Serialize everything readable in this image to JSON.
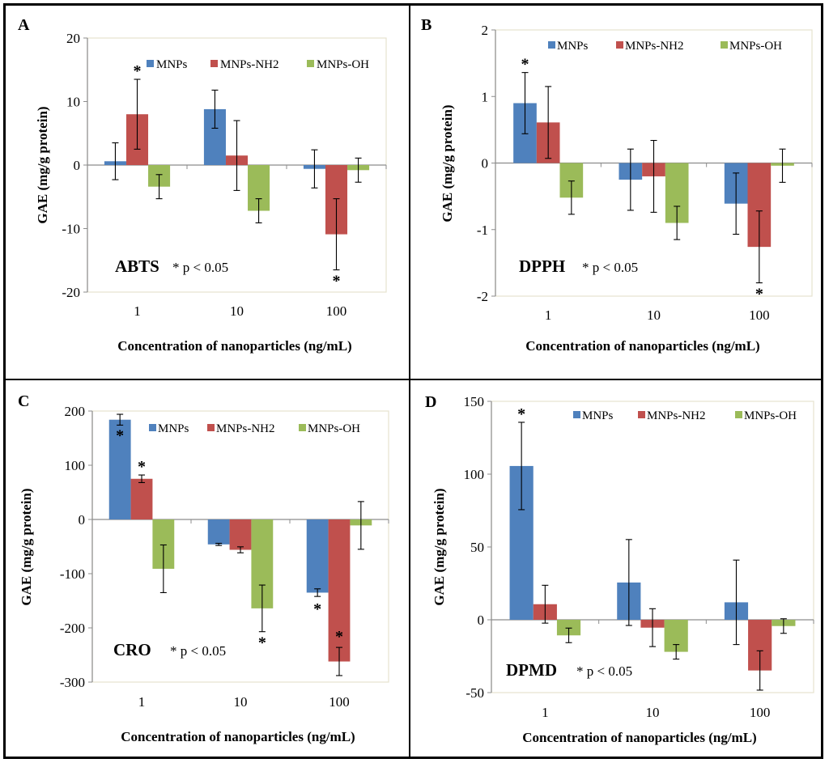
{
  "figure": {
    "legend": [
      "MNPs",
      "MNPs-NH2",
      "MNPs-OH"
    ],
    "colors": {
      "MNPs": "#4F81BD",
      "MNPs-NH2": "#C0504D",
      "MNPs-OH": "#9BBB59"
    }
  },
  "chart_data": [
    {
      "type": "bar",
      "panel": "A",
      "assay_label": "ABTS",
      "significance_note": "* p < 0.05",
      "xlabel": "Concentration of nanoparticles (ng/mL)",
      "ylabel": "GAE (mg/g protein)",
      "categories": [
        "1",
        "10",
        "100"
      ],
      "ylim": [
        -20,
        20
      ],
      "yticks": [
        -20,
        -10,
        0,
        10,
        20
      ],
      "ytick_labels": [
        "-20",
        "-10",
        "0",
        "10",
        "20"
      ],
      "legend_position": "top",
      "grid": false,
      "series": [
        {
          "name": "MNPs",
          "values": [
            0.6,
            8.8,
            -0.6
          ],
          "errors": [
            2.9,
            3.0,
            3.0
          ],
          "significant": [
            false,
            false,
            false
          ]
        },
        {
          "name": "MNPs-NH2",
          "values": [
            8.0,
            1.5,
            -10.9
          ],
          "errors": [
            5.5,
            5.5,
            5.6
          ],
          "significant": [
            true,
            false,
            true
          ]
        },
        {
          "name": "MNPs-OH",
          "values": [
            -3.4,
            -7.2,
            -0.8
          ],
          "errors": [
            1.9,
            1.9,
            1.9
          ],
          "significant": [
            false,
            false,
            false
          ]
        }
      ]
    },
    {
      "type": "bar",
      "panel": "B",
      "assay_label": "DPPH",
      "significance_note": "* p < 0.05",
      "xlabel": "Concentration of nanoparticles (ng/mL)",
      "ylabel": "GAE (mg/g protein)",
      "categories": [
        "1",
        "10",
        "100"
      ],
      "ylim": [
        -2,
        2
      ],
      "yticks": [
        -2,
        -1,
        0,
        1,
        2
      ],
      "ytick_labels": [
        "-2",
        "-1",
        "0",
        "1",
        "2"
      ],
      "legend_position": "top",
      "grid": false,
      "series": [
        {
          "name": "MNPs",
          "values": [
            0.9,
            -0.25,
            -0.61
          ],
          "errors": [
            0.46,
            0.46,
            0.46
          ],
          "significant": [
            true,
            false,
            false
          ]
        },
        {
          "name": "MNPs-NH2",
          "values": [
            0.61,
            -0.2,
            -1.26
          ],
          "errors": [
            0.54,
            0.54,
            0.54
          ],
          "significant": [
            false,
            false,
            true
          ]
        },
        {
          "name": "MNPs-OH",
          "values": [
            -0.52,
            -0.9,
            -0.04
          ],
          "errors": [
            0.25,
            0.25,
            0.25
          ],
          "significant": [
            false,
            false,
            false
          ]
        }
      ]
    },
    {
      "type": "bar",
      "panel": "C",
      "assay_label": "CRO",
      "significance_note": "* p < 0.05",
      "xlabel": "Concentration of nanoparticles (ng/mL)",
      "ylabel": "GAE (mg/g protein)",
      "categories": [
        "1",
        "10",
        "100"
      ],
      "ylim": [
        -300,
        200
      ],
      "yticks": [
        -300,
        -200,
        -100,
        0,
        100,
        200
      ],
      "ytick_labels": [
        "-300",
        "-200",
        "-100",
        "0",
        "100",
        "200"
      ],
      "legend_position": "top-right",
      "grid": false,
      "series": [
        {
          "name": "MNPs",
          "values": [
            184,
            -46,
            -135
          ],
          "errors": [
            10,
            2,
            7
          ],
          "significant": [
            true,
            false,
            true
          ]
        },
        {
          "name": "MNPs-NH2",
          "values": [
            75,
            -56,
            -262
          ],
          "errors": [
            7,
            5.5,
            26
          ],
          "significant": [
            true,
            false,
            true
          ]
        },
        {
          "name": "MNPs-OH",
          "values": [
            -91,
            -164,
            -11
          ],
          "errors": [
            44,
            43,
            44
          ],
          "significant": [
            false,
            true,
            false
          ]
        }
      ]
    },
    {
      "type": "bar",
      "panel": "D",
      "assay_label": "DPMD",
      "significance_note": "* p < 0.05",
      "xlabel": "Concentration of nanoparticles (ng/mL)",
      "ylabel": "GAE (mg/g protein)",
      "categories": [
        "1",
        "10",
        "100"
      ],
      "ylim": [
        -50,
        150
      ],
      "yticks": [
        -50,
        0,
        50,
        100,
        150
      ],
      "ytick_labels": [
        "-50",
        "0",
        "50",
        "100",
        "150"
      ],
      "legend_position": "top-right",
      "grid": false,
      "series": [
        {
          "name": "MNPs",
          "values": [
            105.6,
            25.6,
            12.0
          ],
          "errors": [
            30,
            29.5,
            29
          ],
          "significant": [
            true,
            false,
            false
          ]
        },
        {
          "name": "MNPs-NH2",
          "values": [
            10.7,
            -5.4,
            -34.8
          ],
          "errors": [
            13,
            13,
            13.5
          ],
          "significant": [
            false,
            false,
            false
          ]
        },
        {
          "name": "MNPs-OH",
          "values": [
            -10.7,
            -22.0,
            -4.3
          ],
          "errors": [
            5,
            5,
            5
          ],
          "significant": [
            false,
            false,
            false
          ]
        }
      ]
    }
  ]
}
